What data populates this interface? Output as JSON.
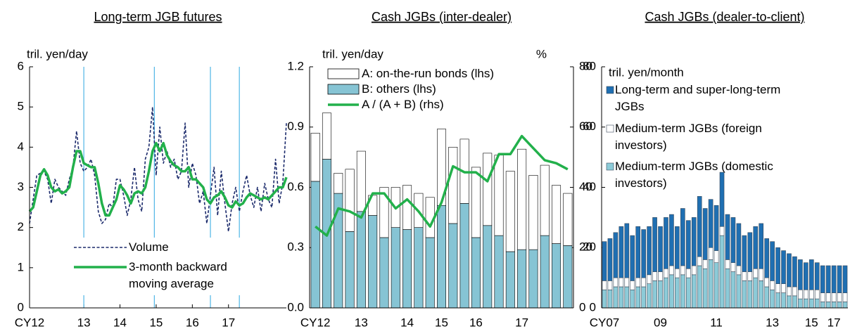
{
  "chart_data": [
    {
      "type": "line",
      "title": "Long-term JGB futures",
      "y_label": "tril. yen/day",
      "categories": [
        "CY12",
        null,
        null,
        null,
        null,
        null,
        null,
        null,
        null,
        null,
        null,
        null,
        null,
        null,
        null,
        "13",
        null,
        null,
        null,
        null,
        null,
        null,
        null,
        null,
        null,
        "14",
        null,
        null,
        null,
        null,
        null,
        null,
        null,
        null,
        null,
        "15",
        null,
        null,
        null,
        null,
        null,
        null,
        null,
        null,
        null,
        "16",
        null,
        null,
        null,
        null,
        null,
        null,
        null,
        null,
        null,
        "17",
        null,
        null,
        null,
        null,
        null,
        null,
        null,
        null,
        null,
        null,
        null,
        null,
        null,
        null,
        null,
        null
      ],
      "series": [
        {
          "name": "Volume",
          "color": "#1b2a6b",
          "style": "dashed",
          "values": [
            2.1,
            2.7,
            3.3,
            3.35,
            3.4,
            3.2,
            2.6,
            3.2,
            3.0,
            2.9,
            2.8,
            3.2,
            3.5,
            4.4,
            3.6,
            3.4,
            3.5,
            3.7,
            3.3,
            2.4,
            2.1,
            2.2,
            2.6,
            2.5,
            3.2,
            3.2,
            2.8,
            2.3,
            2.7,
            3.5,
            2.7,
            2.4,
            3.7,
            4.0,
            5.0,
            3.3,
            4.5,
            3.6,
            3.9,
            3.5,
            3.7,
            3.2,
            3.4,
            4.6,
            3.0,
            3.6,
            3.3,
            2.6,
            2.9,
            2.1,
            2.8,
            3.5,
            2.3,
            3.4,
            2.6,
            1.9,
            2.6,
            3.0,
            2.4,
            2.9,
            3.3,
            2.8,
            2.5,
            3.0,
            2.4,
            3.1,
            2.7,
            2.5,
            3.7,
            2.6,
            3.1,
            4.6
          ]
        },
        {
          "name": "3-month backward moving average",
          "color": "#22b04b",
          "style": "solid",
          "values": [
            2.4,
            2.5,
            2.9,
            3.3,
            3.45,
            3.3,
            3.0,
            2.9,
            2.95,
            2.85,
            2.9,
            3.0,
            3.5,
            3.9,
            3.9,
            3.6,
            3.55,
            3.5,
            3.5,
            3.1,
            2.6,
            2.3,
            2.3,
            2.5,
            2.7,
            3.05,
            2.95,
            2.8,
            2.6,
            2.85,
            2.9,
            2.85,
            3.0,
            3.4,
            3.9,
            4.1,
            3.9,
            4.1,
            3.8,
            3.65,
            3.55,
            3.5,
            3.4,
            3.4,
            3.5,
            3.2,
            3.2,
            3.1,
            3.0,
            2.7,
            2.6,
            2.75,
            2.8,
            2.9,
            2.75,
            2.55,
            2.5,
            2.65,
            2.55,
            2.6,
            2.75,
            2.85,
            2.8,
            2.75,
            2.7,
            2.75,
            2.7,
            2.8,
            2.9,
            3.0,
            3.0,
            3.25
          ]
        }
      ],
      "ylim": [
        0,
        6
      ],
      "yticks": [
        0,
        1,
        2,
        3,
        4,
        5,
        6
      ],
      "event_lines": [
        15,
        34.5,
        50,
        58
      ],
      "event_line_color": "#4fb6e6"
    },
    {
      "type": "bar",
      "stacked": true,
      "title": "Cash JGBs (inter-dealer)",
      "y_label": "tril. yen/day",
      "y2_label": "%",
      "categories": [
        "CY12",
        null,
        null,
        null,
        "13",
        null,
        null,
        null,
        "14",
        null,
        null,
        "15",
        null,
        null,
        "16",
        null,
        null,
        null,
        "17",
        null,
        null,
        null,
        null
      ],
      "series": [
        {
          "name": "A: on-the-run bonds (lhs)",
          "color": "#ffffff",
          "values": [
            0.24,
            0.23,
            0.1,
            0.31,
            0.3,
            0.1,
            0.25,
            0.2,
            0.22,
            0.17,
            0.2,
            0.38,
            0.38,
            0.32,
            0.35,
            0.36,
            0.4,
            0.4,
            0.5,
            0.37,
            0.35,
            0.29,
            0.26
          ]
        },
        {
          "name": "B: others (lhs)",
          "color": "#86c4d4",
          "values": [
            0.63,
            0.74,
            0.57,
            0.38,
            0.48,
            0.46,
            0.35,
            0.4,
            0.39,
            0.4,
            0.35,
            0.51,
            0.42,
            0.52,
            0.35,
            0.41,
            0.36,
            0.28,
            0.29,
            0.29,
            0.36,
            0.32,
            0.31
          ]
        },
        {
          "name": "A / (A + B) (rhs)",
          "color": "#22b04b",
          "type": "line",
          "axis": "y2",
          "values": [
            27,
            24,
            33,
            32,
            30,
            38,
            38,
            33,
            36,
            32,
            27,
            35,
            47,
            45,
            45,
            42,
            51,
            51,
            57,
            53,
            49,
            48,
            46
          ]
        }
      ],
      "edgecolor": "#000000",
      "ylim": [
        0,
        1.2
      ],
      "yticks": [
        {
          "value": 0,
          "label": "0.0"
        },
        0.3,
        0.6,
        0.9,
        1.2
      ],
      "y2lim": [
        0,
        80
      ],
      "y2ticks": [
        0,
        20,
        40,
        60,
        80
      ]
    },
    {
      "type": "bar",
      "stacked": true,
      "title": "Cash JGBs (dealer-to-client)",
      "y_label": "tril. yen/month",
      "categories": [
        "CY07",
        null,
        null,
        null,
        null,
        null,
        null,
        null,
        null,
        null,
        "09",
        null,
        null,
        null,
        null,
        null,
        null,
        null,
        null,
        null,
        "11",
        null,
        null,
        null,
        null,
        null,
        null,
        null,
        null,
        null,
        "13",
        null,
        null,
        null,
        null,
        null,
        null,
        "15",
        null,
        null,
        null,
        "17",
        null,
        null
      ],
      "series": [
        {
          "name": "Long-term and super-long-term JGBs",
          "color": "#1f6fb2",
          "values": [
            13,
            14,
            15,
            17,
            18,
            15,
            17,
            16,
            16,
            18,
            15,
            17,
            17,
            14,
            19,
            16,
            16,
            20,
            17,
            16,
            15,
            18,
            15,
            15,
            14,
            12,
            13,
            14,
            15,
            13,
            13,
            12,
            11,
            11,
            10,
            10,
            9,
            10,
            9,
            9,
            9,
            9,
            9,
            9
          ]
        },
        {
          "name": "Medium-term JGBs (foreign investors)",
          "color": "#ffffff",
          "values": [
            3,
            3,
            3,
            3,
            3,
            3,
            3,
            3,
            3,
            3,
            3,
            3,
            3,
            3,
            3,
            3,
            3,
            3,
            3,
            4,
            4,
            3,
            3,
            3,
            3,
            3,
            3,
            3,
            4,
            3,
            3,
            3,
            3,
            3,
            3,
            3,
            3,
            3,
            3,
            3,
            3,
            3,
            3,
            3
          ]
        },
        {
          "name": "Medium-term JGBs (domestic investors)",
          "color": "#8ccbd8",
          "values": [
            6,
            6,
            7,
            7,
            7,
            6,
            7,
            7,
            8,
            9,
            9,
            10,
            11,
            10,
            11,
            10,
            11,
            14,
            13,
            16,
            15,
            24,
            13,
            12,
            11,
            9,
            9,
            10,
            9,
            7,
            6,
            5,
            5,
            4,
            4,
            3,
            3,
            3,
            3,
            2,
            2,
            2,
            2,
            2
          ]
        }
      ],
      "edgecolor": "#3a4a5a",
      "ylim": [
        0,
        80
      ],
      "yticks": [
        0,
        20,
        40,
        60,
        80
      ]
    }
  ]
}
